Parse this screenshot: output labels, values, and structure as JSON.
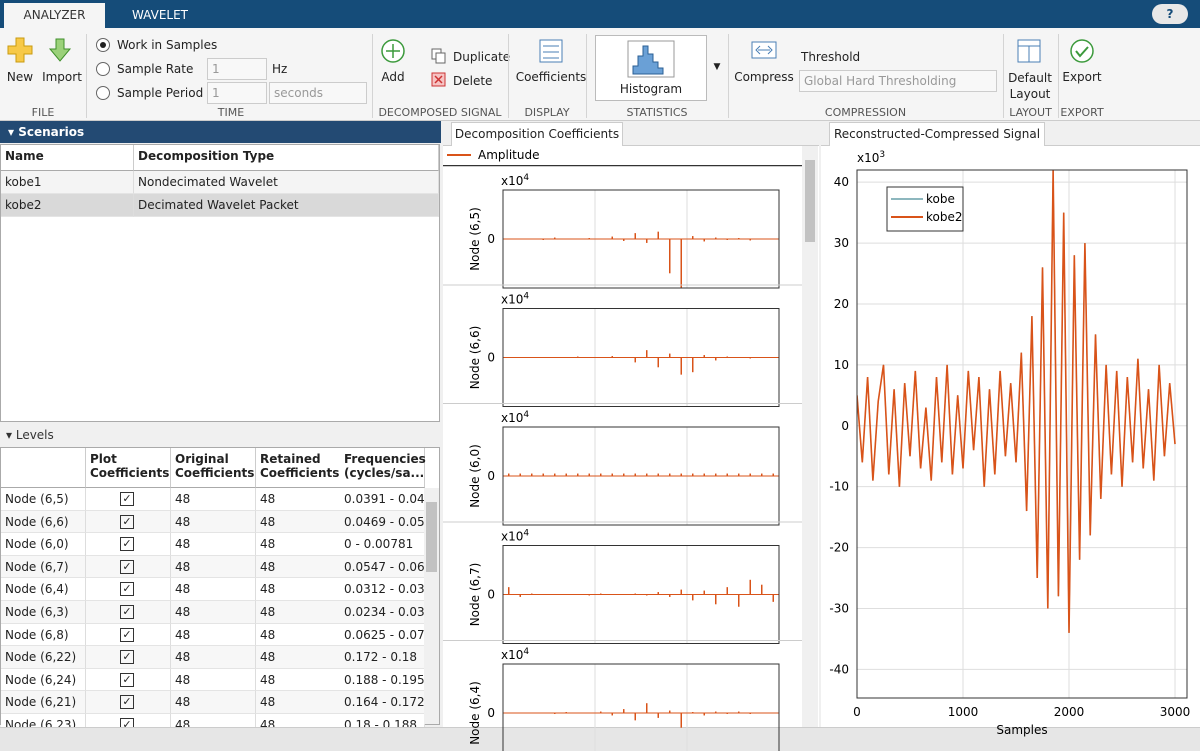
{
  "toolstrip": {
    "tabs": [
      "ANALYZER",
      "WAVELET"
    ],
    "file": {
      "new": "New",
      "import": "Import",
      "label": "FILE"
    },
    "time": {
      "samples": "Work in Samples",
      "rate": "Sample Rate",
      "period": "Sample Period",
      "rate_value": "1",
      "rate_unit": "Hz",
      "period_value": "1",
      "period_unit": "seconds",
      "label": "TIME"
    },
    "decomposed": {
      "add": "Add",
      "duplicate": "Duplicate",
      "delete": "Delete",
      "label": "DECOMPOSED SIGNAL"
    },
    "display": {
      "coefficients": "Coefficients",
      "label": "DISPLAY"
    },
    "statistics": {
      "histogram": "Histogram",
      "label": "STATISTICS"
    },
    "compression": {
      "compress": "Compress",
      "threshold": "Threshold",
      "method": "Global Hard Thresholding",
      "label": "COMPRESSION"
    },
    "layout": {
      "default": "Default Layout",
      "label": "LAYOUT"
    },
    "export": {
      "export": "Export",
      "label": "EXPORT"
    }
  },
  "scenarios": {
    "title": "Scenarios",
    "columns": [
      "Name",
      "Decomposition Type"
    ],
    "rows": [
      [
        "kobe1",
        "Nondecimated Wavelet"
      ],
      [
        "kobe2",
        "Decimated Wavelet Packet"
      ]
    ]
  },
  "levels": {
    "title": "Levels",
    "columns": [
      "Plot Coefficients",
      "Original Coefficients",
      "Retained Coefficients",
      "Frequencies (cycles/sa..."
    ],
    "rows": [
      [
        "Node (6,5)",
        true,
        48,
        48,
        "0.0391 - 0.04..."
      ],
      [
        "Node (6,6)",
        true,
        48,
        48,
        "0.0469 - 0.05..."
      ],
      [
        "Node (6,0)",
        true,
        48,
        48,
        "0 - 0.00781"
      ],
      [
        "Node (6,7)",
        true,
        48,
        48,
        "0.0547 - 0.06..."
      ],
      [
        "Node (6,4)",
        true,
        48,
        48,
        "0.0312 - 0.03..."
      ],
      [
        "Node (6,3)",
        true,
        48,
        48,
        "0.0234 - 0.03..."
      ],
      [
        "Node (6,8)",
        true,
        48,
        48,
        "0.0625 - 0.07..."
      ],
      [
        "Node (6,22)",
        true,
        48,
        48,
        "0.172 - 0.18"
      ],
      [
        "Node (6,24)",
        true,
        48,
        48,
        "0.188 - 0.195"
      ],
      [
        "Node (6,21)",
        true,
        48,
        48,
        "0.164 - 0.172"
      ],
      [
        "Node (6,23)",
        true,
        48,
        48,
        "0.18 - 0.188"
      ]
    ]
  },
  "decomposition": {
    "tab": "Decomposition Coefficients",
    "legend": "Amplitude",
    "color": "#d95319"
  },
  "chart_data": [
    {
      "type": "line",
      "title": "Reconstructed-Compressed Signal",
      "multiplier": "x10",
      "exponent": "3",
      "xlabel": "Samples",
      "x": [
        0,
        50,
        100,
        150,
        200,
        250,
        300,
        350,
        400,
        450,
        500,
        550,
        600,
        650,
        700,
        750,
        800,
        850,
        900,
        950,
        1000,
        1050,
        1100,
        1150,
        1200,
        1250,
        1300,
        1350,
        1400,
        1450,
        1500,
        1550,
        1600,
        1650,
        1700,
        1750,
        1800,
        1850,
        1900,
        1950,
        2000,
        2050,
        2100,
        2150,
        2200,
        2250,
        2300,
        2350,
        2400,
        2450,
        2500,
        2550,
        2600,
        2650,
        2700,
        2750,
        2800,
        2850,
        2900,
        2950,
        3000
      ],
      "series": [
        {
          "name": "kobe",
          "color": "#1b6f7d",
          "values": [
            5,
            -6,
            8,
            -9,
            4,
            10,
            -8,
            6,
            -10,
            7,
            -5,
            9,
            -7,
            3,
            -9,
            8,
            -6,
            10,
            -8,
            5,
            -7,
            9,
            -4,
            8,
            -10,
            6,
            -8,
            9,
            -5,
            7,
            -6,
            12,
            -14,
            18,
            -25,
            26,
            -30,
            42,
            -28,
            35,
            -34,
            28,
            -22,
            30,
            -18,
            15,
            -12,
            10,
            -8,
            9,
            -10,
            8,
            -6,
            11,
            -7,
            6,
            -9,
            10,
            -5,
            7,
            -3
          ]
        },
        {
          "name": "kobe2",
          "color": "#d95319",
          "values": [
            5,
            -6,
            8,
            -9,
            4,
            10,
            -8,
            6,
            -10,
            7,
            -5,
            9,
            -7,
            3,
            -9,
            8,
            -6,
            10,
            -8,
            5,
            -7,
            9,
            -4,
            8,
            -10,
            6,
            -8,
            9,
            -5,
            7,
            -6,
            12,
            -14,
            18,
            -25,
            26,
            -30,
            42,
            -28,
            35,
            -34,
            28,
            -22,
            30,
            -18,
            15,
            -12,
            10,
            -8,
            9,
            -10,
            8,
            -6,
            11,
            -7,
            6,
            -9,
            10,
            -5,
            7,
            -3
          ]
        }
      ],
      "xlim": [
        0,
        3113
      ],
      "ylim": [
        -44.7,
        42
      ],
      "xticks": [
        0,
        1000,
        2000,
        3000
      ],
      "yticks": [
        -40,
        -30,
        -20,
        -10,
        0,
        10,
        20,
        30,
        40
      ],
      "grid": true,
      "legend": "upper left"
    },
    {
      "type": "stem",
      "ylabel": "Node (6,5)",
      "multiplier": "x10",
      "exponent": "4",
      "color": "#d95319",
      "ylim": [
        -1,
        1
      ],
      "yticks": [
        0
      ],
      "values": [
        0,
        0.01,
        0,
        -0.02,
        0.03,
        0,
        -0.01,
        0.02,
        0,
        0.05,
        -0.04,
        0.12,
        -0.08,
        0.15,
        -0.7,
        -1.0,
        0.06,
        -0.05,
        0.03,
        -0.02,
        0.02,
        -0.03,
        0.01,
        0
      ]
    },
    {
      "type": "stem",
      "ylabel": "Node (6,6)",
      "multiplier": "x10",
      "exponent": "4",
      "color": "#d95319",
      "ylim": [
        -1,
        1
      ],
      "yticks": [
        0
      ],
      "values": [
        0,
        0,
        0.01,
        0,
        -0.01,
        0,
        0.02,
        0,
        -0.01,
        0.03,
        0,
        -0.1,
        0.15,
        -0.2,
        0.08,
        -0.35,
        -0.3,
        0.05,
        -0.06,
        0.02,
        0,
        -0.02,
        0.01,
        0
      ]
    },
    {
      "type": "stem",
      "ylabel": "Node (6,0)",
      "multiplier": "x10",
      "exponent": "4",
      "color": "#d95319",
      "ylim": [
        -1,
        1
      ],
      "yticks": [
        0
      ],
      "values": [
        0.05,
        0.05,
        0.05,
        0.05,
        0.05,
        0.05,
        0.05,
        0.05,
        0.05,
        0.05,
        0.05,
        0.05,
        0.05,
        0.05,
        0.05,
        0.05,
        0.05,
        0.05,
        0.05,
        0.05,
        0.05,
        0.05,
        0.05,
        0.05
      ]
    },
    {
      "type": "stem",
      "ylabel": "Node (6,7)",
      "multiplier": "x10",
      "exponent": "4",
      "color": "#d95319",
      "ylim": [
        -1,
        1
      ],
      "yticks": [
        0
      ],
      "values": [
        0.15,
        -0.05,
        0.02,
        0,
        -0.01,
        0.01,
        0,
        -0.02,
        0.02,
        -0.01,
        0,
        0.02,
        -0.02,
        0.05,
        -0.05,
        0.1,
        -0.12,
        0.08,
        -0.2,
        0.15,
        -0.25,
        0.3,
        0.2,
        -0.15
      ]
    },
    {
      "type": "stem",
      "ylabel": "Node (6,4)",
      "multiplier": "x10",
      "exponent": "4",
      "color": "#d95319",
      "ylim": [
        -1,
        1
      ],
      "yticks": [
        0
      ],
      "values": [
        0,
        0,
        0.01,
        0,
        -0.02,
        0.02,
        0,
        -0.01,
        0.03,
        -0.05,
        0.08,
        -0.15,
        0.2,
        -0.1,
        0.05,
        -0.3,
        0.02,
        -0.05,
        0.03,
        -0.02,
        0.03,
        -0.02,
        0.01,
        0
      ]
    }
  ]
}
